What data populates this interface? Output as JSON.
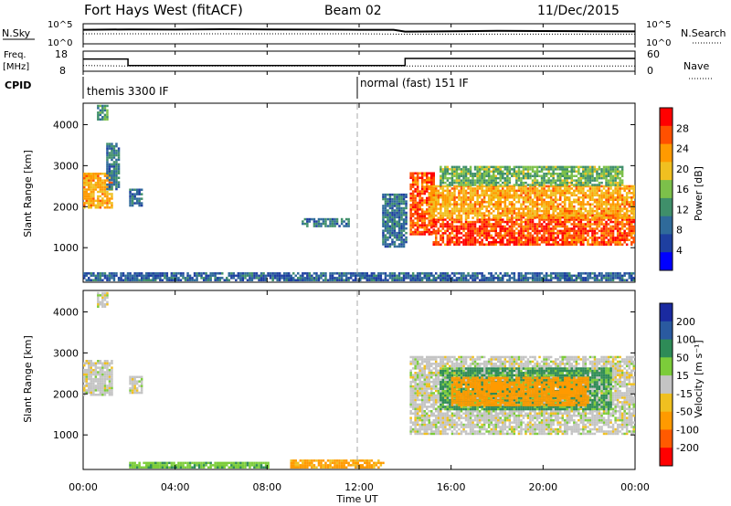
{
  "header": {
    "station": "Fort Hays West (fitACF)",
    "beam": "Beam 02",
    "date": "11/Dec/2015"
  },
  "noise_panel": {
    "left_label": "N.Sky",
    "right_label": "N.Search",
    "ticks_left": [
      "10^5",
      "10^0"
    ],
    "ticks_right": [
      "10^5",
      "10^0"
    ]
  },
  "freq_panel": {
    "left_label_1": "Freq.",
    "left_label_2": "[MHz]",
    "right_label": "Nave",
    "ticks_left": [
      "18",
      "8"
    ],
    "ticks_right": [
      "60",
      "0"
    ]
  },
  "cpid": {
    "label": "CPID",
    "modes": [
      {
        "name": "themis 3300 IF",
        "start_hour": 0
      },
      {
        "name": "normal (fast) 151 IF",
        "start_hour": 12
      }
    ]
  },
  "axes": {
    "x_ticks": [
      "00:00",
      "04:00",
      "08:00",
      "12:00",
      "16:00",
      "20:00",
      "00:00"
    ],
    "x_label": "Time UT",
    "y_label": "Slant Range [km]",
    "y_ticks": [
      "1000",
      "2000",
      "3000",
      "4000"
    ]
  },
  "power_colorbar": {
    "label": "Power [dB]",
    "ticks": [
      "4",
      "8",
      "12",
      "16",
      "20",
      "24",
      "28"
    ]
  },
  "velocity_colorbar": {
    "label": "Velocity [m s⁻¹]",
    "ticks": [
      "200",
      "100",
      "50",
      "15",
      "-15",
      "-50",
      "-100",
      "-200"
    ]
  },
  "chart_data": [
    {
      "type": "line",
      "title": "N.Sky / N.Search",
      "x_unit": "hours UT",
      "xlim": [
        0,
        24
      ],
      "series": [
        {
          "name": "N.Sky",
          "x": [
            0,
            2,
            4,
            6,
            8,
            10,
            12,
            13.5,
            14,
            16,
            18,
            20,
            22,
            24
          ],
          "y": [
            0.72,
            0.74,
            0.73,
            0.75,
            0.74,
            0.73,
            0.72,
            0.72,
            0.62,
            0.64,
            0.66,
            0.65,
            0.64,
            0.63
          ]
        },
        {
          "name": "N.Search",
          "x": [
            0,
            4,
            8,
            12,
            14,
            18,
            24
          ],
          "y": [
            0.5,
            0.5,
            0.5,
            0.5,
            0.48,
            0.48,
            0.48
          ]
        }
      ]
    },
    {
      "type": "line",
      "title": "Freq. / Nave",
      "x_unit": "hours UT",
      "xlim": [
        0,
        24
      ],
      "series": [
        {
          "name": "Freq. [MHz]",
          "x": [
            0,
            1.95,
            1.95,
            14,
            14,
            24
          ],
          "y": [
            14.2,
            14.2,
            10.6,
            10.6,
            14.5,
            14.5
          ]
        },
        {
          "name": "Nave",
          "x": [
            0,
            2,
            4,
            8,
            12,
            16,
            20,
            24
          ],
          "y": [
            16,
            14,
            14,
            14,
            14,
            14,
            14,
            14
          ]
        }
      ]
    },
    {
      "type": "heatmap",
      "title": "Power",
      "xlim": [
        0,
        24
      ],
      "ylim": [
        180,
        4500
      ],
      "color_scale": {
        "min": 0,
        "max": 32,
        "unit": "dB"
      },
      "regions": [
        {
          "t0": 0.0,
          "t1": 1.3,
          "r0": 1950,
          "r1": 2800,
          "value": 22
        },
        {
          "t0": 0.6,
          "t1": 1.0,
          "r0": 4100,
          "r1": 4450,
          "value": 12
        },
        {
          "t0": 1.0,
          "t1": 1.6,
          "r0": 2400,
          "r1": 3550,
          "value": 10
        },
        {
          "t0": 2.0,
          "t1": 2.6,
          "r0": 2000,
          "r1": 2400,
          "value": 9
        },
        {
          "t0": 9.5,
          "t1": 11.5,
          "r0": 1500,
          "r1": 1700,
          "value": 10
        },
        {
          "t0": 14.2,
          "t1": 15.2,
          "r0": 1300,
          "r1": 2800,
          "value": 27
        },
        {
          "t0": 15.2,
          "t1": 19.0,
          "r0": 1050,
          "r1": 1700,
          "value": 28
        },
        {
          "t0": 19.0,
          "t1": 24.0,
          "r0": 1050,
          "r1": 1800,
          "value": 27
        },
        {
          "t0": 15.0,
          "t1": 24.0,
          "r0": 1700,
          "r1": 2500,
          "value": 22
        },
        {
          "t0": 15.5,
          "t1": 23.5,
          "r0": 2500,
          "r1": 2950,
          "value": 15
        },
        {
          "t0": 13.0,
          "t1": 14.0,
          "r0": 1000,
          "r1": 2300,
          "value": 9
        },
        {
          "t0": 0.0,
          "t1": 24.0,
          "r0": 180,
          "r1": 400,
          "value": 8
        }
      ]
    },
    {
      "type": "heatmap",
      "title": "Velocity",
      "xlim": [
        0,
        24
      ],
      "ylim": [
        180,
        4500
      ],
      "color_scale": {
        "min": -250,
        "max": 250,
        "unit": "m/s"
      },
      "regions": [
        {
          "t0": 0.0,
          "t1": 1.3,
          "r0": 1950,
          "r1": 2800,
          "value": 0
        },
        {
          "t0": 0.6,
          "t1": 1.0,
          "r0": 4100,
          "r1": 4450,
          "value": 0
        },
        {
          "t0": 2.0,
          "t1": 2.6,
          "r0": 2000,
          "r1": 2400,
          "value": 0
        },
        {
          "t0": 14.2,
          "t1": 24.0,
          "r0": 1000,
          "r1": 2900,
          "value": 0
        },
        {
          "t0": 15.5,
          "t1": 23.0,
          "r0": 1600,
          "r1": 2600,
          "value": 60
        },
        {
          "t0": 16.0,
          "t1": 22.0,
          "r0": 1700,
          "r1": 2400,
          "value": -70
        },
        {
          "t0": 9.0,
          "t1": 13.0,
          "r0": 180,
          "r1": 400,
          "value": -60
        },
        {
          "t0": 2.0,
          "t1": 8.0,
          "r0": 180,
          "r1": 300,
          "value": 40
        }
      ]
    }
  ]
}
